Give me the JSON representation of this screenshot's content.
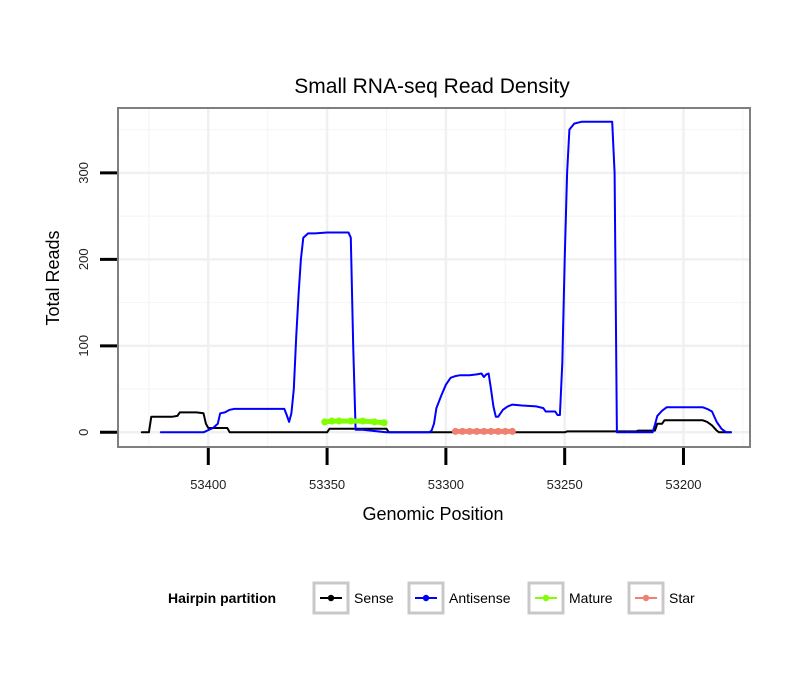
{
  "chart_data": {
    "type": "line",
    "title": "Small RNA-seq Read Density",
    "xlabel": "Genomic Position",
    "ylabel": "Total Reads",
    "xlim": [
      53172,
      53438
    ],
    "x_reversed": true,
    "ylim": [
      -17,
      375
    ],
    "x_ticks": [
      53400,
      53350,
      53300,
      53250,
      53200
    ],
    "y_ticks": [
      0,
      100,
      200,
      300
    ],
    "legend": {
      "title": "Hairpin partition",
      "position": "bottom",
      "items": [
        "Sense",
        "Antisense",
        "Mature",
        "Star"
      ]
    },
    "series": [
      {
        "name": "Antisense",
        "color": "#0000ff",
        "points": [
          [
            53420,
            0
          ],
          [
            53402,
            0
          ],
          [
            53398,
            5
          ],
          [
            53396,
            10
          ],
          [
            53395,
            22
          ],
          [
            53393,
            23
          ],
          [
            53391,
            26
          ],
          [
            53389,
            27
          ],
          [
            53375,
            27
          ],
          [
            53368,
            27
          ],
          [
            53367,
            20
          ],
          [
            53366,
            12
          ],
          [
            53365,
            22
          ],
          [
            53364,
            50
          ],
          [
            53363,
            110
          ],
          [
            53362,
            160
          ],
          [
            53361,
            200
          ],
          [
            53360,
            225
          ],
          [
            53358,
            230
          ],
          [
            53355,
            230
          ],
          [
            53350,
            231
          ],
          [
            53341,
            231
          ],
          [
            53340,
            225
          ],
          [
            53339,
            100
          ],
          [
            53338,
            3
          ],
          [
            53335,
            3
          ],
          [
            53325,
            0
          ],
          [
            53307,
            0
          ],
          [
            53306,
            2
          ],
          [
            53305,
            10
          ],
          [
            53304,
            28
          ],
          [
            53302,
            42
          ],
          [
            53300,
            55
          ],
          [
            53298,
            63
          ],
          [
            53296,
            65
          ],
          [
            53294,
            66
          ],
          [
            53290,
            66
          ],
          [
            53287,
            67
          ],
          [
            53285,
            68
          ],
          [
            53284,
            64
          ],
          [
            53283,
            67
          ],
          [
            53282,
            68
          ],
          [
            53281,
            50
          ],
          [
            53280,
            30
          ],
          [
            53279,
            18
          ],
          [
            53278,
            18
          ],
          [
            53276,
            26
          ],
          [
            53274,
            30
          ],
          [
            53272,
            32
          ],
          [
            53268,
            31
          ],
          [
            53262,
            30
          ],
          [
            53259,
            28
          ],
          [
            53258,
            24
          ],
          [
            53254,
            24
          ],
          [
            53253,
            20
          ],
          [
            53252,
            20
          ],
          [
            53251,
            80
          ],
          [
            53250,
            200
          ],
          [
            53249,
            300
          ],
          [
            53248,
            350
          ],
          [
            53246,
            357
          ],
          [
            53243,
            359
          ],
          [
            53230,
            359
          ],
          [
            53229,
            300
          ],
          [
            53228,
            0
          ],
          [
            53213,
            0
          ],
          [
            53212,
            9
          ],
          [
            53211,
            19
          ],
          [
            53209,
            25
          ],
          [
            53207,
            29
          ],
          [
            53205,
            29
          ],
          [
            53200,
            29
          ],
          [
            53192,
            29
          ],
          [
            53190,
            27
          ],
          [
            53188,
            24
          ],
          [
            53186,
            12
          ],
          [
            53184,
            4
          ],
          [
            53182,
            0
          ],
          [
            53180,
            0
          ]
        ]
      },
      {
        "name": "Sense",
        "color": "#000000",
        "points": [
          [
            53428,
            0
          ],
          [
            53425,
            0
          ],
          [
            53424,
            18
          ],
          [
            53415,
            18
          ],
          [
            53413,
            19
          ],
          [
            53412,
            23
          ],
          [
            53405,
            23
          ],
          [
            53402,
            22
          ],
          [
            53401,
            10
          ],
          [
            53400,
            5
          ],
          [
            53392,
            5
          ],
          [
            53391,
            0
          ],
          [
            53350,
            0
          ],
          [
            53349,
            4
          ],
          [
            53325,
            4
          ],
          [
            53324,
            0
          ],
          [
            53250,
            0
          ],
          [
            53249,
            1
          ],
          [
            53220,
            1
          ],
          [
            53219,
            2
          ],
          [
            53212,
            2
          ],
          [
            53211,
            10
          ],
          [
            53209,
            10
          ],
          [
            53208,
            14
          ],
          [
            53204,
            14
          ],
          [
            53192,
            14
          ],
          [
            53190,
            12
          ],
          [
            53188,
            8
          ],
          [
            53186,
            2
          ],
          [
            53185,
            0
          ],
          [
            53180,
            0
          ]
        ]
      },
      {
        "name": "Mature",
        "color": "#7fff00",
        "points": [
          [
            53351,
            12
          ],
          [
            53348,
            13
          ],
          [
            53345,
            13
          ],
          [
            53340,
            13
          ],
          [
            53335,
            13
          ],
          [
            53330,
            12
          ],
          [
            53326,
            11
          ]
        ]
      },
      {
        "name": "Star",
        "color": "#f08070",
        "points": [
          [
            53296,
            1
          ],
          [
            53293,
            1
          ],
          [
            53290,
            1
          ],
          [
            53287,
            1
          ],
          [
            53284,
            1
          ],
          [
            53281,
            1
          ],
          [
            53278,
            1
          ],
          [
            53275,
            1
          ],
          [
            53272,
            1
          ]
        ]
      }
    ]
  }
}
